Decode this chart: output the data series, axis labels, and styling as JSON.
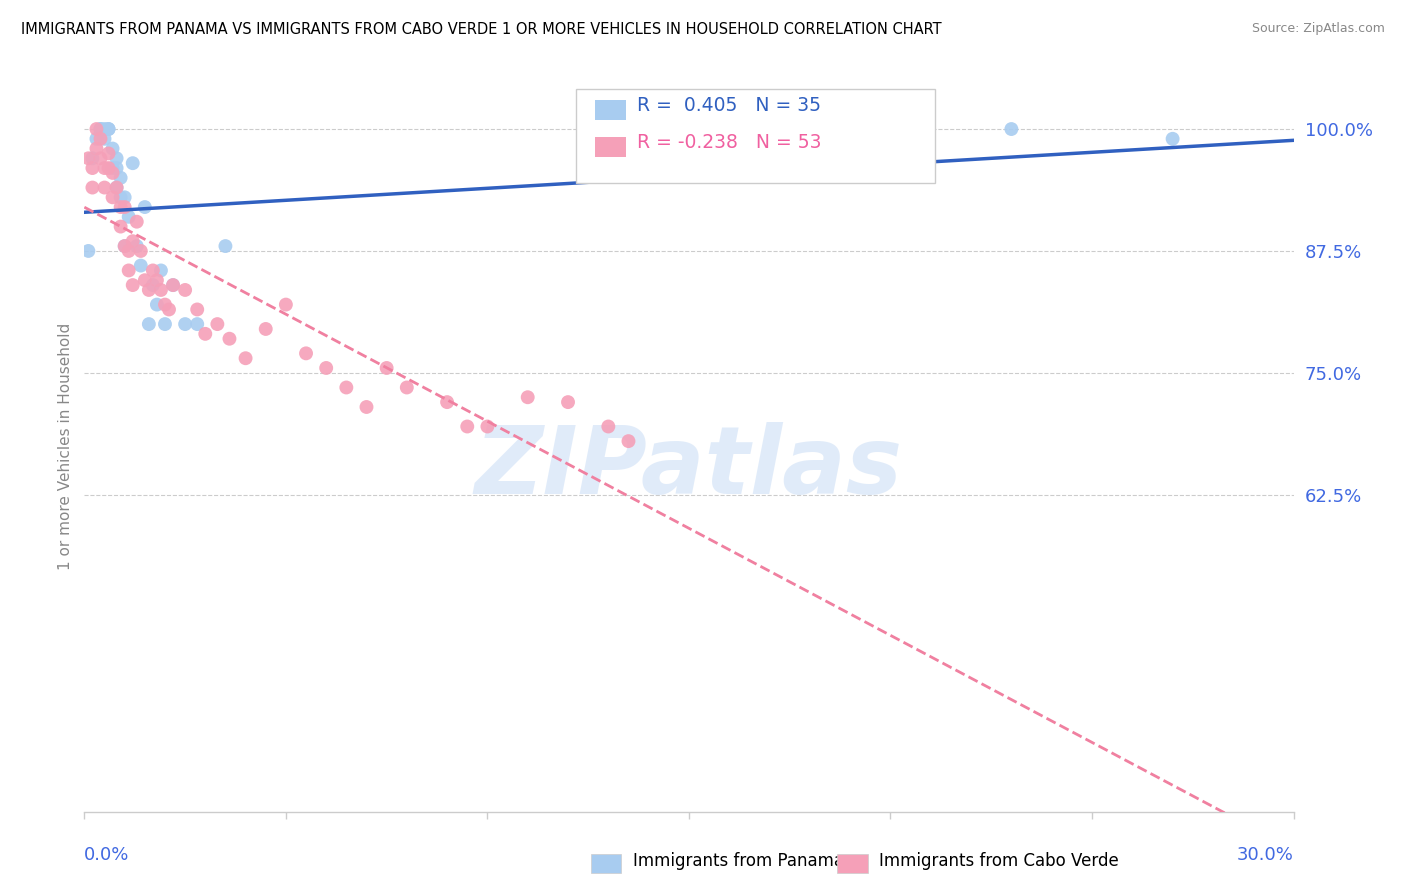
{
  "title": "IMMIGRANTS FROM PANAMA VS IMMIGRANTS FROM CABO VERDE 1 OR MORE VEHICLES IN HOUSEHOLD CORRELATION CHART",
  "source": "Source: ZipAtlas.com",
  "ylabel": "1 or more Vehicles in Household",
  "y_ticks": [
    0.625,
    0.75,
    0.875,
    1.0
  ],
  "y_tick_labels": [
    "62.5%",
    "75.0%",
    "87.5%",
    "100.0%"
  ],
  "x_range": [
    0.0,
    0.3
  ],
  "y_range": [
    0.3,
    1.05
  ],
  "legend_r1": "R =  0.405   N = 35",
  "legend_r2": "R = -0.238   N = 53",
  "panama_color": "#A8CCF0",
  "cabo_verde_color": "#F5A0B8",
  "panama_line_color": "#3060C0",
  "cabo_verde_line_color": "#F080A0",
  "watermark_text": "ZIPatlas",
  "panama_points_x": [
    0.001,
    0.002,
    0.003,
    0.004,
    0.004,
    0.005,
    0.005,
    0.006,
    0.006,
    0.007,
    0.007,
    0.008,
    0.008,
    0.008,
    0.009,
    0.009,
    0.01,
    0.01,
    0.011,
    0.012,
    0.013,
    0.014,
    0.015,
    0.016,
    0.017,
    0.018,
    0.019,
    0.02,
    0.022,
    0.025,
    0.028,
    0.035,
    0.19,
    0.23,
    0.27
  ],
  "panama_points_y": [
    0.875,
    0.97,
    0.99,
    1.0,
    1.0,
    1.0,
    0.99,
    1.0,
    1.0,
    0.98,
    0.96,
    0.97,
    0.96,
    0.94,
    0.95,
    0.93,
    0.93,
    0.88,
    0.91,
    0.965,
    0.88,
    0.86,
    0.92,
    0.8,
    0.84,
    0.82,
    0.855,
    0.8,
    0.84,
    0.8,
    0.8,
    0.88,
    0.99,
    1.0,
    0.99
  ],
  "cabo_verde_points_x": [
    0.001,
    0.002,
    0.002,
    0.003,
    0.003,
    0.004,
    0.004,
    0.005,
    0.005,
    0.006,
    0.006,
    0.007,
    0.007,
    0.008,
    0.009,
    0.009,
    0.01,
    0.01,
    0.011,
    0.011,
    0.012,
    0.012,
    0.013,
    0.014,
    0.015,
    0.016,
    0.017,
    0.018,
    0.019,
    0.02,
    0.021,
    0.022,
    0.025,
    0.028,
    0.03,
    0.033,
    0.036,
    0.04,
    0.045,
    0.05,
    0.055,
    0.06,
    0.065,
    0.07,
    0.075,
    0.08,
    0.09,
    0.095,
    0.1,
    0.11,
    0.12,
    0.13,
    0.135
  ],
  "cabo_verde_points_y": [
    0.97,
    0.96,
    0.94,
    1.0,
    0.98,
    0.99,
    0.97,
    0.96,
    0.94,
    0.975,
    0.96,
    0.955,
    0.93,
    0.94,
    0.92,
    0.9,
    0.92,
    0.88,
    0.875,
    0.855,
    0.885,
    0.84,
    0.905,
    0.875,
    0.845,
    0.835,
    0.855,
    0.845,
    0.835,
    0.82,
    0.815,
    0.84,
    0.835,
    0.815,
    0.79,
    0.8,
    0.785,
    0.765,
    0.795,
    0.82,
    0.77,
    0.755,
    0.735,
    0.715,
    0.755,
    0.735,
    0.72,
    0.695,
    0.695,
    0.725,
    0.72,
    0.695,
    0.68
  ]
}
